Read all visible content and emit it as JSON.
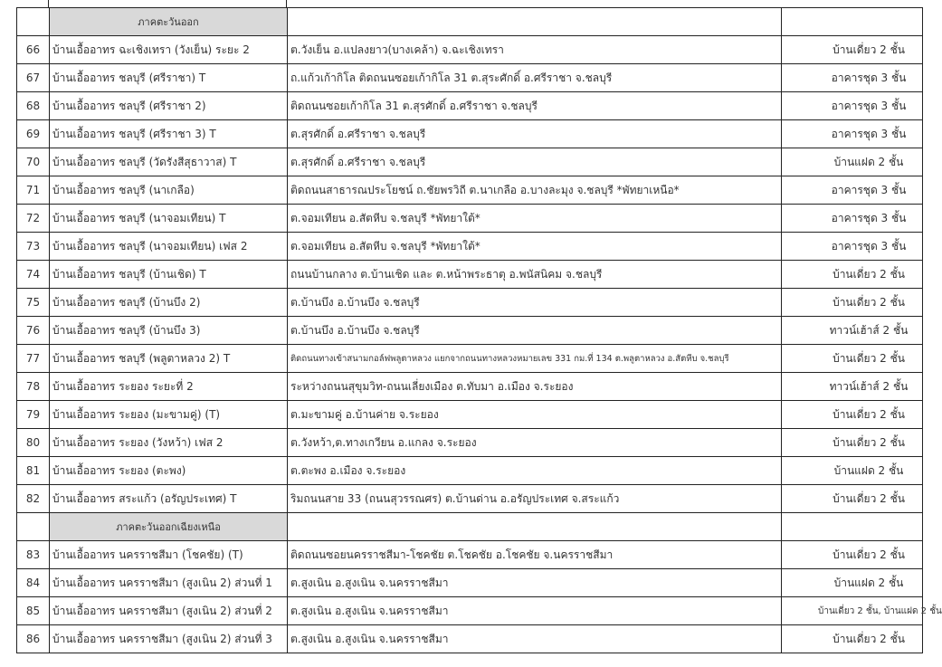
{
  "table": {
    "sections": [
      {
        "region": "ภาคตะวันออก",
        "rows": [
          {
            "no": "66",
            "name": "บ้านเอื้ออาทร ฉะเชิงเทรา (วังเย็น) ระยะ 2",
            "address": "ต.วังเย็น อ.แปลงยาว(บางเคล้า) จ.ฉะเชิงเทรา",
            "type": "บ้านเดี่ยว 2 ชั้น"
          },
          {
            "no": "67",
            "name": "บ้านเอื้ออาทร ชลบุรี (ศรีราชา) T",
            "address": "ถ.แก้วเก้ากิโล ติดถนนซอยเก้ากิโล 31 ต.สุระศักดิ์ อ.ศรีราชา จ.ชลบุรี",
            "type": "อาคารชุด 3 ชั้น"
          },
          {
            "no": "68",
            "name": "บ้านเอื้ออาทร ชลบุรี (ศรีราชา 2)",
            "address": "ติดถนนซอยเก้ากิโล 31 ต.สุรศักดิ์ อ.ศรีราชา จ.ชลบุรี",
            "type": "อาคารชุด 3 ชั้น"
          },
          {
            "no": "69",
            "name": "บ้านเอื้ออาทร ชลบุรี (ศรีราชา 3) T",
            "address": "ต.สุรศักดิ์ อ.ศรีราชา จ.ชลบุรี",
            "type": "อาคารชุด 3 ชั้น"
          },
          {
            "no": "70",
            "name": "บ้านเอื้ออาทร ชลบุรี (วัดรังสีสุธาวาส) T",
            "address": "ต.สุรศักดิ์ อ.ศรีราชา จ.ชลบุรี",
            "type": "บ้านแฝด 2 ชั้น"
          },
          {
            "no": "71",
            "name": "บ้านเอื้ออาทร ชลบุรี (นาเกลือ)",
            "address": "ติดถนนสาธารณประโยชน์ ถ.ชัยพรวิถี ต.นาเกลือ อ.บางละมุง จ.ชลบุรี *พัทยาเหนือ*",
            "type": "อาคารชุด 3 ชั้น"
          },
          {
            "no": "72",
            "name": "บ้านเอื้ออาทร ชลบุรี (นาจอมเทียน) T",
            "address": "ต.จอมเทียน อ.สัตหีบ จ.ชลบุรี *พัทยาใต้*",
            "type": "อาคารชุด 3 ชั้น"
          },
          {
            "no": "73",
            "name": "บ้านเอื้ออาทร ชลบุรี (นาจอมเทียน) เฟส 2",
            "address": "ต.จอมเทียน อ.สัตหีบ จ.ชลบุรี *พัทยาใต้*",
            "type": "อาคารชุด 3 ชั้น"
          },
          {
            "no": "74",
            "name": "บ้านเอื้ออาทร ชลบุรี (บ้านเชิด) T",
            "address": "ถนนบ้านกลาง ต.บ้านเชิด และ ต.หน้าพระธาตุ อ.พนัสนิคม จ.ชลบุรี",
            "type": "บ้านเดี่ยว 2 ชั้น"
          },
          {
            "no": "75",
            "name": "บ้านเอื้ออาทร ชลบุรี (บ้านบึง 2)",
            "address": "ต.บ้านบึง อ.บ้านบึง จ.ชลบุรี",
            "type": "บ้านเดี่ยว 2 ชั้น"
          },
          {
            "no": "76",
            "name": "บ้านเอื้ออาทร ชลบุรี (บ้านบึง 3)",
            "address": "ต.บ้านบึง อ.บ้านบึง จ.ชลบุรี",
            "type": "ทาวน์เฮ้าส์ 2 ชั้น"
          },
          {
            "no": "77",
            "name": "บ้านเอื้ออาทร ชลบุรี (พลูตาหลวง 2) T",
            "address": "ติดถนนทางเข้าสนามกอล์ฟพลูตาหลวง แยกจากถนนทางหลวงหมายเลข 331 กม.ที่ 134 ต.พลูตาหลวง อ.สัตหีบ จ.ชลบุรี",
            "type": "บ้านเดี่ยว 2 ชั้น",
            "small_address": true
          },
          {
            "no": "78",
            "name": "บ้านเอื้ออาทร ระยอง ระยะที่ 2",
            "address": "ระหว่างถนนสุขุมวิท-ถนนเลี่ยงเมือง ต.ทับมา อ.เมือง จ.ระยอง",
            "type": "ทาวน์เฮ้าส์ 2 ชั้น"
          },
          {
            "no": "79",
            "name": "บ้านเอื้ออาทร ระยอง (มะขามคู่) (T)",
            "address": "ต.มะขามคู่ อ.บ้านค่าย จ.ระยอง",
            "type": "บ้านเดี่ยว 2 ชั้น"
          },
          {
            "no": "80",
            "name": "บ้านเอื้ออาทร ระยอง (วังหว้า) เฟส 2",
            "address": "ต.วังหว้า,ต.ทางเกวียน อ.แกลง จ.ระยอง",
            "type": "บ้านเดี่ยว 2 ชั้น"
          },
          {
            "no": "81",
            "name": "บ้านเอื้ออาทร ระยอง (ตะพง)",
            "address": "ต.ตะพง อ.เมือง จ.ระยอง",
            "type": "บ้านแฝด 2 ชั้น"
          },
          {
            "no": "82",
            "name": "บ้านเอื้ออาทร สระแก้ว (อรัญประเทศ) T",
            "address": "ริมถนนสาย 33 (ถนนสุวรรณศร) ต.บ้านด่าน อ.อรัญประเทศ จ.สระแก้ว",
            "type": "บ้านเดี่ยว 2 ชั้น"
          }
        ]
      },
      {
        "region": "ภาคตะวันออกเฉียงเหนือ",
        "rows": [
          {
            "no": "83",
            "name": "บ้านเอื้ออาทร นครราชสีมา (โชคชัย) (T)",
            "address": "ติดถนนซอยนครราชสีมา-โชคชัย ต.โชคชัย อ.โชคชัย จ.นครราชสีมา",
            "type": "บ้านเดี่ยว 2 ชั้น"
          },
          {
            "no": "84",
            "name": "บ้านเอื้ออาทร นครราชสีมา (สูงเนิน 2) ส่วนที่ 1",
            "address": "ต.สูงเนิน อ.สูงเนิน จ.นครราชสีมา",
            "type": "บ้านแฝด 2 ชั้น"
          },
          {
            "no": "85",
            "name": "บ้านเอื้ออาทร นครราชสีมา (สูงเนิน 2) ส่วนที่ 2",
            "address": "ต.สูงเนิน อ.สูงเนิน จ.นครราชสีมา",
            "type": "บ้านเดี่ยว 2 ชั้น, บ้านแฝด 2 ชั้น",
            "small_type": true
          },
          {
            "no": "86",
            "name": "บ้านเอื้ออาทร นครราชสีมา (สูงเนิน 2) ส่วนที่ 3",
            "address": "ต.สูงเนิน อ.สูงเนิน จ.นครราชสีมา",
            "type": "บ้านเดี่ยว 2 ชั้น"
          }
        ]
      }
    ]
  }
}
